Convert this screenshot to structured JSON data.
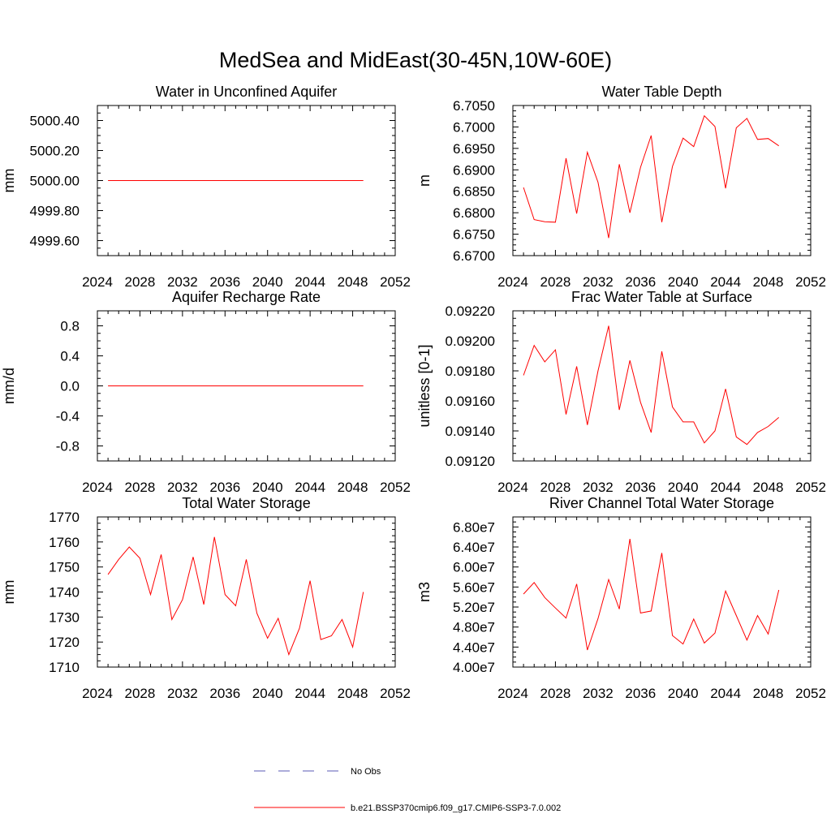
{
  "title": "MedSea and MidEast(30-45N,10W-60E)",
  "colors": {
    "model": "#ff0000",
    "obs": "#5a5ab4",
    "axis": "#000000"
  },
  "legend": {
    "obs_label": "No Obs",
    "model_label": "b.e21.BSSP370cmip6.f09_g17.CMIP6-SSP3-7.0.002"
  },
  "chart_data": [
    {
      "type": "line",
      "title": "Water in Unconfined Aquifer",
      "ylabel": "mm",
      "xlim": [
        2024,
        2052
      ],
      "xticks": [
        2024,
        2028,
        2032,
        2036,
        2040,
        2044,
        2048,
        2052
      ],
      "xtick_labels": [
        "2024",
        "2028",
        "2032",
        "2036",
        "2040",
        "2044",
        "2048",
        "2052"
      ],
      "ylim": [
        4999.5,
        5000.5
      ],
      "yticks": [
        4999.6,
        4999.8,
        5000.0,
        5000.2,
        5000.4
      ],
      "ytick_labels": [
        "4999.60",
        "4999.80",
        "5000.00",
        "5000.20",
        "5000.40"
      ],
      "x": [
        2025,
        2026,
        2027,
        2028,
        2029,
        2030,
        2031,
        2032,
        2033,
        2034,
        2035,
        2036,
        2037,
        2038,
        2039,
        2040,
        2041,
        2042,
        2043,
        2044,
        2045,
        2046,
        2047,
        2048,
        2049
      ],
      "y": [
        5000.0,
        5000.0,
        5000.0,
        5000.0,
        5000.0,
        5000.0,
        5000.0,
        5000.0,
        5000.0,
        5000.0,
        5000.0,
        5000.0,
        5000.0,
        5000.0,
        5000.0,
        5000.0,
        5000.0,
        5000.0,
        5000.0,
        5000.0,
        5000.0,
        5000.0,
        5000.0,
        5000.0,
        5000.0
      ]
    },
    {
      "type": "line",
      "title": "Water Table Depth",
      "ylabel": "m",
      "xlim": [
        2024,
        2052
      ],
      "xticks": [
        2024,
        2028,
        2032,
        2036,
        2040,
        2044,
        2048,
        2052
      ],
      "xtick_labels": [
        "2024",
        "2028",
        "2032",
        "2036",
        "2040",
        "2044",
        "2048",
        "2052"
      ],
      "ylim": [
        6.67,
        6.705
      ],
      "yticks": [
        6.67,
        6.675,
        6.68,
        6.685,
        6.69,
        6.695,
        6.7,
        6.705
      ],
      "ytick_labels": [
        "6.6700",
        "6.6750",
        "6.6800",
        "6.6850",
        "6.6900",
        "6.6950",
        "6.7000",
        "6.7050"
      ],
      "x": [
        2025,
        2026,
        2027,
        2028,
        2029,
        2030,
        2031,
        2032,
        2033,
        2034,
        2035,
        2036,
        2037,
        2038,
        2039,
        2040,
        2041,
        2042,
        2043,
        2044,
        2045,
        2046,
        2047,
        2048,
        2049
      ],
      "y": [
        6.6859,
        6.6784,
        6.6779,
        6.6778,
        6.6927,
        6.6798,
        6.6941,
        6.6871,
        6.6741,
        6.6913,
        6.68,
        6.6906,
        6.698,
        6.6778,
        6.6908,
        6.6974,
        6.6954,
        6.7026,
        6.7001,
        6.6857,
        6.6998,
        6.702,
        6.6971,
        6.6973,
        6.6956
      ]
    },
    {
      "type": "line",
      "title": "Aquifer Recharge Rate",
      "ylabel": "mm/d",
      "xlim": [
        2024,
        2052
      ],
      "xticks": [
        2024,
        2028,
        2032,
        2036,
        2040,
        2044,
        2048,
        2052
      ],
      "xtick_labels": [
        "2024",
        "2028",
        "2032",
        "2036",
        "2040",
        "2044",
        "2048",
        "2052"
      ],
      "ylim": [
        -1.0,
        1.0
      ],
      "yticks": [
        -0.8,
        -0.4,
        0.0,
        0.4,
        0.8
      ],
      "ytick_labels": [
        "-0.8",
        "-0.4",
        "0.0",
        "0.4",
        "0.8"
      ],
      "x": [
        2025,
        2026,
        2027,
        2028,
        2029,
        2030,
        2031,
        2032,
        2033,
        2034,
        2035,
        2036,
        2037,
        2038,
        2039,
        2040,
        2041,
        2042,
        2043,
        2044,
        2045,
        2046,
        2047,
        2048,
        2049
      ],
      "y": [
        0,
        0,
        0,
        0,
        0,
        0,
        0,
        0,
        0,
        0,
        0,
        0,
        0,
        0,
        0,
        0,
        0,
        0,
        0,
        0,
        0,
        0,
        0,
        0,
        0
      ]
    },
    {
      "type": "line",
      "title": "Frac Water Table at Surface",
      "ylabel": "unitless [0-1]",
      "xlim": [
        2024,
        2052
      ],
      "xticks": [
        2024,
        2028,
        2032,
        2036,
        2040,
        2044,
        2048,
        2052
      ],
      "xtick_labels": [
        "2024",
        "2028",
        "2032",
        "2036",
        "2040",
        "2044",
        "2048",
        "2052"
      ],
      "ylim": [
        0.0912,
        0.0922
      ],
      "yticks": [
        0.0912,
        0.0914,
        0.0916,
        0.0918,
        0.092,
        0.0922
      ],
      "ytick_labels": [
        "0.09120",
        "0.09140",
        "0.09160",
        "0.09180",
        "0.09200",
        "0.09220"
      ],
      "x": [
        2025,
        2026,
        2027,
        2028,
        2029,
        2030,
        2031,
        2032,
        2033,
        2034,
        2035,
        2036,
        2037,
        2038,
        2039,
        2040,
        2041,
        2042,
        2043,
        2044,
        2045,
        2046,
        2047,
        2048,
        2049
      ],
      "y": [
        0.09177,
        0.09197,
        0.09186,
        0.09194,
        0.09151,
        0.09183,
        0.09144,
        0.0918,
        0.0921,
        0.09154,
        0.09187,
        0.09159,
        0.09139,
        0.09193,
        0.09156,
        0.09146,
        0.09146,
        0.09132,
        0.0914,
        0.09168,
        0.09136,
        0.09131,
        0.09139,
        0.09143,
        0.09149
      ]
    },
    {
      "type": "line",
      "title": "Total Water Storage",
      "ylabel": "mm",
      "xlim": [
        2024,
        2052
      ],
      "xticks": [
        2024,
        2028,
        2032,
        2036,
        2040,
        2044,
        2048,
        2052
      ],
      "xtick_labels": [
        "2024",
        "2028",
        "2032",
        "2036",
        "2040",
        "2044",
        "2048",
        "2052"
      ],
      "ylim": [
        1710,
        1770
      ],
      "yticks": [
        1710,
        1720,
        1730,
        1740,
        1750,
        1760,
        1770
      ],
      "ytick_labels": [
        "1710",
        "1720",
        "1730",
        "1740",
        "1750",
        "1760",
        "1770"
      ],
      "x": [
        2025,
        2026,
        2027,
        2028,
        2029,
        2030,
        2031,
        2032,
        2033,
        2034,
        2035,
        2036,
        2037,
        2038,
        2039,
        2040,
        2041,
        2042,
        2043,
        2044,
        2045,
        2046,
        2047,
        2048,
        2049
      ],
      "y": [
        1747,
        1753,
        1758,
        1753.5,
        1739,
        1755,
        1729,
        1737,
        1754,
        1735,
        1762,
        1739,
        1734.5,
        1753,
        1731.5,
        1721.5,
        1729.5,
        1715,
        1725.5,
        1744.5,
        1721,
        1722.5,
        1729,
        1718,
        1740
      ]
    },
    {
      "type": "line",
      "title": "River Channel Total Water Storage",
      "ylabel": "m3",
      "xlim": [
        2024,
        2052
      ],
      "xticks": [
        2024,
        2028,
        2032,
        2036,
        2040,
        2044,
        2048,
        2052
      ],
      "xtick_labels": [
        "2024",
        "2028",
        "2032",
        "2036",
        "2040",
        "2044",
        "2048",
        "2052"
      ],
      "ylim": [
        40000000,
        70000000
      ],
      "yticks": [
        40000000,
        44000000,
        48000000,
        52000000,
        56000000,
        60000000,
        64000000,
        68000000
      ],
      "ytick_labels": [
        "4.00e7",
        "4.40e7",
        "4.80e7",
        "5.20e7",
        "5.60e7",
        "6.00e7",
        "6.40e7",
        "6.80e7"
      ],
      "x": [
        2025,
        2026,
        2027,
        2028,
        2029,
        2030,
        2031,
        2032,
        2033,
        2034,
        2035,
        2036,
        2037,
        2038,
        2039,
        2040,
        2041,
        2042,
        2043,
        2044,
        2045,
        2046,
        2047,
        2048,
        2049
      ],
      "y": [
        54600000,
        56900000,
        53900000,
        51800000,
        49800000,
        56600000,
        43400000,
        49700000,
        57500000,
        51600000,
        65600000,
        50800000,
        51200000,
        62800000,
        46300000,
        44600000,
        49600000,
        44800000,
        46800000,
        55200000,
        50300000,
        45400000,
        50300000,
        46600000,
        55400000
      ]
    }
  ]
}
